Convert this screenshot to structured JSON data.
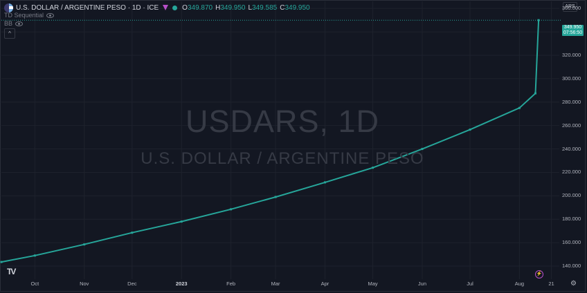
{
  "header": {
    "title": "U.S. DOLLAR / ARGENTINE PESO · 1D · ICE",
    "ohlc": [
      {
        "key": "O",
        "value": "349.870"
      },
      {
        "key": "H",
        "value": "349.950"
      },
      {
        "key": "L",
        "value": "349.585"
      },
      {
        "key": "C",
        "value": "349.950"
      }
    ],
    "icons": [
      "flag-icon",
      "tag-icon",
      "market-open-dot-icon"
    ]
  },
  "indicators": [
    {
      "name": "TD Sequential",
      "icon": "eye-icon"
    },
    {
      "name": "BB",
      "icon": "eye-icon"
    }
  ],
  "collapse_label": "^",
  "watermark": {
    "symbol": "USDARS, 1D",
    "description": "U.S. DOLLAR / ARGENTINE PESO"
  },
  "currency_button": "ARS",
  "price_tag": {
    "price": "349.950",
    "countdown": "07:56:50"
  },
  "colors": {
    "background": "#131722",
    "grid": "#1e222d",
    "line": "#26a69a",
    "text": "#b2b5be"
  },
  "chart_data": {
    "type": "line",
    "title": "USDARS, 1D",
    "y_ticks": [
      "360.000",
      "340.000",
      "320.000",
      "300.000",
      "280.000",
      "260.000",
      "240.000",
      "220.000",
      "200.000",
      "180.000",
      "160.000",
      "140.000"
    ],
    "ylim": [
      130,
      366
    ],
    "x_ticks": [
      {
        "label": "Oct",
        "date": "2022-10-01"
      },
      {
        "label": "Nov",
        "date": "2022-11-01"
      },
      {
        "label": "Dec",
        "date": "2022-12-01"
      },
      {
        "label": "2023",
        "date": "2023-01-01",
        "bold": true
      },
      {
        "label": "Feb",
        "date": "2023-02-01"
      },
      {
        "label": "Mar",
        "date": "2023-03-01"
      },
      {
        "label": "Apr",
        "date": "2023-04-01"
      },
      {
        "label": "May",
        "date": "2023-05-01"
      },
      {
        "label": "Jun",
        "date": "2023-06-01"
      },
      {
        "label": "Jul",
        "date": "2023-07-01"
      },
      {
        "label": "Aug",
        "date": "2023-08-01"
      },
      {
        "label": "21",
        "date": "2023-08-21"
      }
    ],
    "xlim": [
      "2022-09-10",
      "2023-08-26"
    ],
    "grid": true,
    "series": [
      {
        "values": [
          {
            "x": "2022-09-10",
            "y": 143.5
          },
          {
            "x": "2022-10-01",
            "y": 149.0
          },
          {
            "x": "2022-11-01",
            "y": 158.5
          },
          {
            "x": "2022-12-01",
            "y": 168.5
          },
          {
            "x": "2023-01-01",
            "y": 178.0
          },
          {
            "x": "2023-02-01",
            "y": 188.5
          },
          {
            "x": "2023-03-01",
            "y": 199.0
          },
          {
            "x": "2023-04-01",
            "y": 211.5
          },
          {
            "x": "2023-05-01",
            "y": 224.0
          },
          {
            "x": "2023-06-01",
            "y": 240.0
          },
          {
            "x": "2023-07-01",
            "y": 256.5
          },
          {
            "x": "2023-08-01",
            "y": 275.0
          },
          {
            "x": "2023-08-11",
            "y": 287.5
          },
          {
            "x": "2023-08-13",
            "y": 349.95
          }
        ]
      }
    ]
  }
}
